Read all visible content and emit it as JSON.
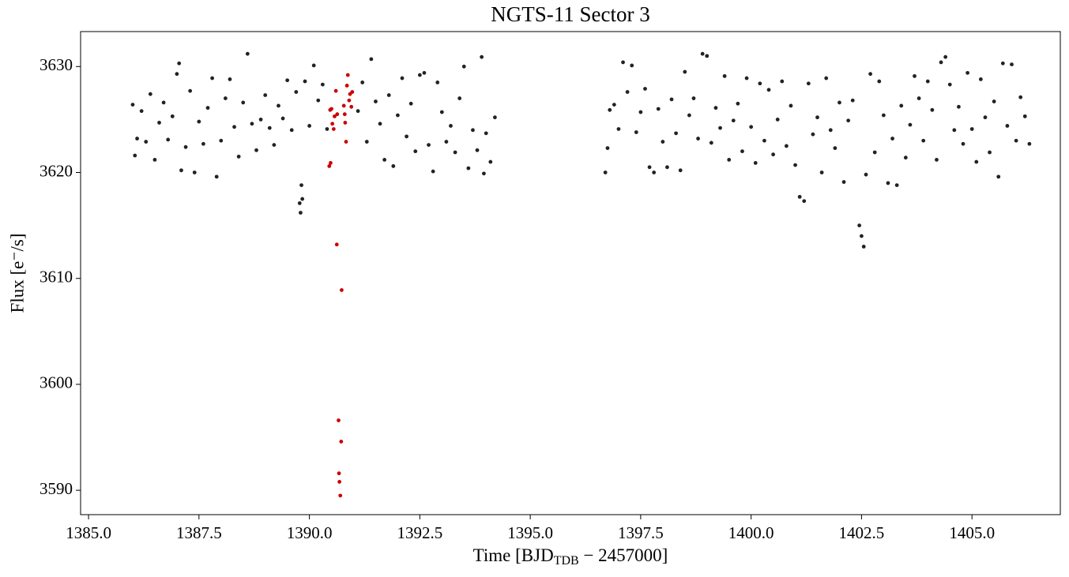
{
  "chart_data": {
    "type": "scatter",
    "title": "NGTS-11 Sector 3",
    "xlabel": {
      "text": "Time [BJD",
      "sub": "TDB",
      "rest": " − 2457000]"
    },
    "ylabel": "Flux [e⁻/s]",
    "xlim": [
      1384.82,
      1407.0
    ],
    "ylim": [
      3587.7,
      3633.3
    ],
    "xticks": [
      {
        "value": 1385,
        "label": "1385.0"
      },
      {
        "value": 1387.5,
        "label": "1387.5"
      },
      {
        "value": 1390,
        "label": "1390.0"
      },
      {
        "value": 1392.5,
        "label": "1392.5"
      },
      {
        "value": 1395,
        "label": "1395.0"
      },
      {
        "value": 1397.5,
        "label": "1397.5"
      },
      {
        "value": 1400,
        "label": "1400.0"
      },
      {
        "value": 1402.5,
        "label": "1402.5"
      },
      {
        "value": 1405,
        "label": "1405.0"
      }
    ],
    "yticks": [
      3590,
      3600,
      3610,
      3620,
      3630
    ],
    "series": [
      {
        "color": "#222222",
        "x": [
          1386.0,
          1386.05,
          1386.1,
          1386.2,
          1386.3,
          1386.4,
          1386.5,
          1386.6,
          1386.7,
          1386.8,
          1386.9,
          1387.0,
          1387.05,
          1387.1,
          1387.2,
          1387.3,
          1387.4,
          1387.5,
          1387.6,
          1387.7,
          1387.8,
          1387.9,
          1388.0,
          1388.1,
          1388.2,
          1388.3,
          1388.4,
          1388.5,
          1388.6,
          1388.7,
          1388.8,
          1388.9,
          1389.0,
          1389.1,
          1389.2,
          1389.3,
          1389.4,
          1389.5,
          1389.6,
          1389.7,
          1389.78,
          1389.8,
          1389.82,
          1389.84,
          1389.9,
          1390.0,
          1390.1,
          1390.2,
          1390.3,
          1390.4,
          1391.1,
          1391.2,
          1391.3,
          1391.4,
          1391.5,
          1391.6,
          1391.7,
          1391.8,
          1391.9,
          1392.0,
          1392.1,
          1392.2,
          1392.3,
          1392.4,
          1392.5,
          1392.6,
          1392.7,
          1392.8,
          1392.9,
          1393.0,
          1393.1,
          1393.2,
          1393.3,
          1393.4,
          1393.5,
          1393.6,
          1393.7,
          1393.8,
          1393.9,
          1393.95,
          1394.0,
          1394.1,
          1394.2,
          1396.7,
          1396.75,
          1396.8,
          1396.9,
          1397.0,
          1397.1,
          1397.2,
          1397.3,
          1397.4,
          1397.5,
          1397.6,
          1397.7,
          1397.8,
          1397.9,
          1398.0,
          1398.1,
          1398.2,
          1398.3,
          1398.4,
          1398.5,
          1398.6,
          1398.7,
          1398.8,
          1398.9,
          1399.0,
          1399.1,
          1399.2,
          1399.3,
          1399.4,
          1399.5,
          1399.6,
          1399.7,
          1399.8,
          1399.9,
          1400.0,
          1400.1,
          1400.2,
          1400.3,
          1400.4,
          1400.5,
          1400.6,
          1400.7,
          1400.8,
          1400.9,
          1401.0,
          1401.1,
          1401.2,
          1401.3,
          1401.4,
          1401.5,
          1401.6,
          1401.7,
          1401.8,
          1401.9,
          1402.0,
          1402.1,
          1402.2,
          1402.3,
          1402.45,
          1402.5,
          1402.55,
          1402.6,
          1402.7,
          1402.8,
          1402.9,
          1403.0,
          1403.1,
          1403.2,
          1403.3,
          1403.4,
          1403.5,
          1403.6,
          1403.7,
          1403.8,
          1403.9,
          1404.0,
          1404.1,
          1404.2,
          1404.3,
          1404.4,
          1404.5,
          1404.6,
          1404.7,
          1404.8,
          1404.9,
          1405.0,
          1405.1,
          1405.2,
          1405.3,
          1405.4,
          1405.5,
          1405.6,
          1405.7,
          1405.8,
          1405.9,
          1406.0,
          1406.1,
          1406.2,
          1406.3
        ],
        "values": [
          3626.4,
          3621.6,
          3623.2,
          3625.8,
          3622.9,
          3627.4,
          3621.2,
          3624.7,
          3626.6,
          3623.1,
          3625.3,
          3629.3,
          3630.3,
          3620.2,
          3622.4,
          3627.7,
          3620.0,
          3624.8,
          3622.7,
          3626.1,
          3628.9,
          3619.6,
          3623.0,
          3627.0,
          3628.8,
          3624.3,
          3621.5,
          3626.6,
          3631.2,
          3624.6,
          3622.1,
          3625.0,
          3627.3,
          3624.2,
          3622.6,
          3626.3,
          3625.1,
          3628.7,
          3624.0,
          3627.6,
          3617.1,
          3616.2,
          3618.8,
          3617.5,
          3628.6,
          3624.4,
          3630.1,
          3626.8,
          3628.3,
          3624.1,
          3625.8,
          3628.5,
          3622.9,
          3630.7,
          3626.7,
          3624.6,
          3621.2,
          3627.3,
          3620.6,
          3625.4,
          3628.9,
          3623.4,
          3626.5,
          3622.0,
          3629.2,
          3629.4,
          3622.6,
          3620.1,
          3628.5,
          3625.7,
          3622.9,
          3624.4,
          3621.9,
          3627.0,
          3630.0,
          3620.4,
          3624.0,
          3622.1,
          3630.9,
          3619.9,
          3623.7,
          3621.0,
          3625.2,
          3620.0,
          3622.3,
          3625.9,
          3626.4,
          3624.1,
          3630.4,
          3627.6,
          3630.1,
          3623.8,
          3625.7,
          3627.9,
          3620.5,
          3620.0,
          3626.0,
          3622.9,
          3620.5,
          3626.9,
          3623.7,
          3620.2,
          3629.5,
          3625.4,
          3627.0,
          3623.2,
          3631.2,
          3631.0,
          3622.8,
          3626.1,
          3624.2,
          3629.1,
          3621.2,
          3624.9,
          3626.5,
          3622.0,
          3628.9,
          3624.3,
          3620.9,
          3628.4,
          3623.0,
          3627.8,
          3621.7,
          3625.0,
          3628.6,
          3622.5,
          3626.3,
          3620.7,
          3617.7,
          3617.3,
          3628.4,
          3623.6,
          3625.2,
          3620.0,
          3628.9,
          3624.0,
          3622.3,
          3626.6,
          3619.1,
          3624.9,
          3626.8,
          3615.0,
          3614.0,
          3613.0,
          3619.8,
          3629.3,
          3621.9,
          3628.6,
          3625.4,
          3619.0,
          3623.2,
          3618.8,
          3626.3,
          3621.4,
          3624.5,
          3629.1,
          3627.0,
          3623.0,
          3628.6,
          3625.9,
          3621.2,
          3630.4,
          3630.9,
          3628.3,
          3624.0,
          3626.2,
          3622.7,
          3629.4,
          3624.1,
          3621.0,
          3628.8,
          3625.2,
          3621.9,
          3626.7,
          3619.6,
          3630.3,
          3624.4,
          3630.2,
          3623.0,
          3627.1,
          3625.3,
          3622.7
        ]
      },
      {
        "color": "#cc0000",
        "x": [
          1390.45,
          1390.48,
          1390.47,
          1390.5,
          1390.52,
          1390.55,
          1390.57,
          1390.6,
          1390.62,
          1390.63,
          1390.66,
          1390.67,
          1390.68,
          1390.7,
          1390.72,
          1390.73,
          1390.78,
          1390.8,
          1390.81,
          1390.83,
          1390.85,
          1390.87,
          1390.9,
          1390.92,
          1390.95,
          1390.97
        ],
        "values": [
          3620.6,
          3620.9,
          3625.9,
          3626.0,
          3624.6,
          3624.1,
          3625.3,
          3627.7,
          3613.2,
          3625.5,
          3596.6,
          3591.6,
          3590.8,
          3589.5,
          3594.6,
          3608.9,
          3626.3,
          3625.5,
          3624.7,
          3622.9,
          3628.2,
          3629.2,
          3626.8,
          3627.4,
          3626.2,
          3627.6
        ]
      }
    ]
  }
}
